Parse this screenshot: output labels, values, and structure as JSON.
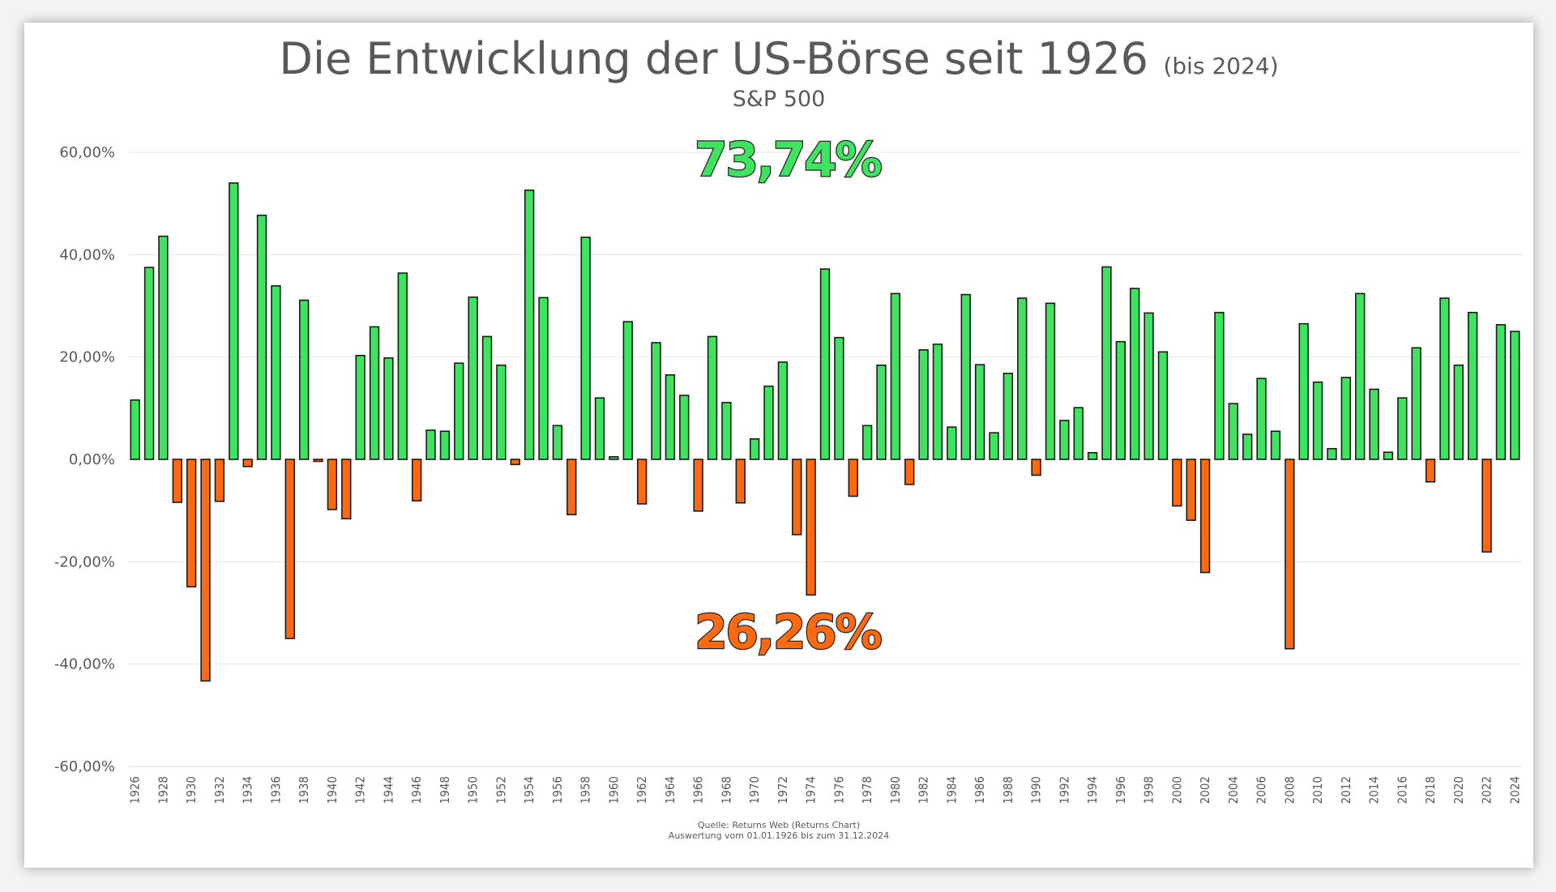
{
  "colors": {
    "positive": "#3ee45f",
    "negative": "#ff6a10",
    "bar_stroke": "#1a1a1a",
    "grid": "#e6e6e6",
    "text": "#595959"
  },
  "chart_data": {
    "type": "bar",
    "title": "Die Entwicklung der US-Börse seit 1926",
    "title_suffix": "(bis 2024)",
    "subtitle": "S&P 500",
    "positive_share_label": "73,74%",
    "negative_share_label": "26,26%",
    "source_line_1": "Quelle: Returns Web (Returns Chart)",
    "source_line_2": "Auswertung vom 01.01.1926 bis zum 31.12.2024",
    "ylim": [
      -60,
      60
    ],
    "y_ticks": [
      60,
      40,
      20,
      0,
      -20,
      -40,
      -60
    ],
    "y_tick_labels": [
      "60,00%",
      "40,00%",
      "20,00%",
      "0,00%",
      "-20,00%",
      "-40,00%",
      "-60,00%"
    ],
    "grid": true,
    "x_tick_labels": [
      "1926",
      "1928",
      "1930",
      "1932",
      "1934",
      "1936",
      "1938",
      "1940",
      "1942",
      "1944",
      "1946",
      "1948",
      "1950",
      "1952",
      "1954",
      "1956",
      "1958",
      "1960",
      "1962",
      "1964",
      "1966",
      "1968",
      "1970",
      "1972",
      "1974",
      "1976",
      "1978",
      "1980",
      "1982",
      "1984",
      "1986",
      "1988",
      "1990",
      "1992",
      "1994",
      "1996",
      "1998",
      "2000",
      "2002",
      "2004",
      "2006",
      "2008",
      "2010",
      "2012",
      "2014",
      "2016",
      "2018",
      "2020",
      "2022",
      "2024"
    ],
    "categories": [
      1926,
      1927,
      1928,
      1929,
      1930,
      1931,
      1932,
      1933,
      1934,
      1935,
      1936,
      1937,
      1938,
      1939,
      1940,
      1941,
      1942,
      1943,
      1944,
      1945,
      1946,
      1947,
      1948,
      1949,
      1950,
      1951,
      1952,
      1953,
      1954,
      1955,
      1956,
      1957,
      1958,
      1959,
      1960,
      1961,
      1962,
      1963,
      1964,
      1965,
      1966,
      1967,
      1968,
      1969,
      1970,
      1971,
      1972,
      1973,
      1974,
      1975,
      1976,
      1977,
      1978,
      1979,
      1980,
      1981,
      1982,
      1983,
      1984,
      1985,
      1986,
      1987,
      1988,
      1989,
      1990,
      1991,
      1992,
      1993,
      1994,
      1995,
      1996,
      1997,
      1998,
      1999,
      2000,
      2001,
      2002,
      2003,
      2004,
      2005,
      2006,
      2007,
      2008,
      2009,
      2010,
      2011,
      2012,
      2013,
      2014,
      2015,
      2016,
      2017,
      2018,
      2019,
      2020,
      2021,
      2022,
      2023,
      2024
    ],
    "values": [
      11.6,
      37.5,
      43.6,
      -8.4,
      -24.9,
      -43.3,
      -8.2,
      54.0,
      -1.4,
      47.7,
      33.9,
      -35.0,
      31.1,
      -0.4,
      -9.8,
      -11.6,
      20.3,
      25.9,
      19.8,
      36.4,
      -8.1,
      5.7,
      5.5,
      18.8,
      31.7,
      24.0,
      18.4,
      -1.0,
      52.6,
      31.6,
      6.6,
      -10.8,
      43.4,
      12.0,
      0.5,
      26.9,
      -8.7,
      22.8,
      16.5,
      12.5,
      -10.1,
      24.0,
      11.1,
      -8.5,
      4.0,
      14.3,
      19.0,
      -14.7,
      -26.5,
      37.2,
      23.8,
      -7.2,
      6.6,
      18.4,
      32.4,
      -4.9,
      21.4,
      22.5,
      6.3,
      32.2,
      18.5,
      5.2,
      16.8,
      31.5,
      -3.1,
      30.5,
      7.6,
      10.1,
      1.3,
      37.6,
      23.0,
      33.4,
      28.6,
      21.0,
      -9.1,
      -11.9,
      -22.1,
      28.7,
      10.9,
      4.9,
      15.8,
      5.5,
      -37.0,
      26.5,
      15.1,
      2.1,
      16.0,
      32.4,
      13.7,
      1.4,
      12.0,
      21.8,
      -4.4,
      31.5,
      18.4,
      28.7,
      -18.1,
      26.3,
      25.0
    ]
  }
}
